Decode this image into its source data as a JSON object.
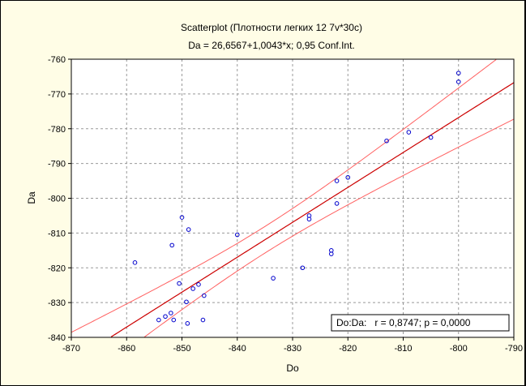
{
  "chart_data": {
    "type": "scatter",
    "title": "Scatterplot (Плотности легких 12 7v*30c)",
    "subtitle": "Da = 26,6567+1,0043*x; 0,95 Conf.Int.",
    "xlabel": "Do",
    "ylabel": "Da",
    "xlim": [
      -870,
      -790
    ],
    "ylim": [
      -840,
      -760
    ],
    "xticks": [
      "-870",
      "-860",
      "-850",
      "-840",
      "-830",
      "-820",
      "-810",
      "-800",
      "-790"
    ],
    "yticks": [
      "-760",
      "-770",
      "-780",
      "-790",
      "-800",
      "-810",
      "-820",
      "-830",
      "-840"
    ],
    "grid": true,
    "regression": {
      "intercept": 26.6567,
      "slope": 1.0043
    },
    "confidence_level": 0.95,
    "annotation": "Do:Da:   r = 0,8747; p = 0,0000",
    "colors": {
      "points": "#0000cc",
      "fit": "#cc0000",
      "ci": "#ff6060",
      "background": "#fffde6"
    },
    "x": [
      -858.5,
      -854.2,
      -853.0,
      -852.0,
      -851.8,
      -851.5,
      -850.5,
      -850.0,
      -849.2,
      -849.0,
      -848.8,
      -848.0,
      -847.0,
      -846.2,
      -846.0,
      -840.0,
      -833.5,
      -828.2,
      -827.0,
      -827.0,
      -823.0,
      -823.0,
      -822.0,
      -822.0,
      -820.0,
      -813.0,
      -809.0,
      -805.0,
      -800.0,
      -800.0
    ],
    "y": [
      -818.5,
      -835.0,
      -834.0,
      -833.0,
      -813.5,
      -835.0,
      -824.5,
      -805.5,
      -829.8,
      -836.0,
      -809.0,
      -826.0,
      -824.8,
      -835.0,
      -828.0,
      -810.5,
      -823.0,
      -820.0,
      -805.0,
      -806.0,
      -815.0,
      -816.0,
      -795.0,
      -801.5,
      -794.0,
      -783.5,
      -781.0,
      -782.5,
      -764.0,
      -766.5
    ]
  }
}
